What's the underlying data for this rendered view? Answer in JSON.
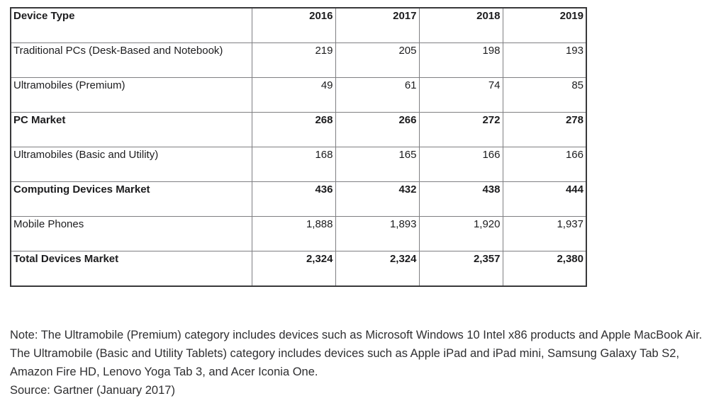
{
  "chart_data": {
    "type": "table",
    "columns": [
      "Device Type",
      "2016",
      "2017",
      "2018",
      "2019"
    ],
    "rows": [
      {
        "label": "Traditional PCs (Desk-Based and Notebook)",
        "values": [
          219,
          205,
          198,
          193
        ],
        "bold": false
      },
      {
        "label": "Ultramobiles (Premium)",
        "values": [
          49,
          61,
          74,
          85
        ],
        "bold": false
      },
      {
        "label": "PC Market",
        "values": [
          268,
          266,
          272,
          278
        ],
        "bold": true
      },
      {
        "label": "Ultramobiles (Basic and Utility)",
        "values": [
          168,
          165,
          166,
          166
        ],
        "bold": false
      },
      {
        "label": "Computing Devices Market",
        "values": [
          436,
          432,
          438,
          444
        ],
        "bold": true
      },
      {
        "label": "Mobile Phones",
        "values": [
          1888,
          1893,
          1920,
          1937
        ],
        "bold": false
      },
      {
        "label": "Total Devices Market",
        "values": [
          2324,
          2324,
          2357,
          2380
        ],
        "bold": true
      }
    ]
  },
  "notes": {
    "note1": "Note: The Ultramobile (Premium) category includes devices such as Microsoft Windows 10 Intel x86 products and Apple MacBook Air.",
    "note2": "The Ultramobile (Basic and Utility Tablets) category includes devices such as Apple iPad and iPad mini, Samsung Galaxy Tab S2, Amazon Fire HD, Lenovo Yoga Tab 3, and Acer Iconia One.",
    "source": "Source: Gartner (January 2017)"
  },
  "colors": {
    "background": "#ffffff",
    "table_text": "#1c1c1e",
    "notes_text": "#2e2e30",
    "inner_border": "#7f7f82",
    "outer_border": "#38383a"
  }
}
